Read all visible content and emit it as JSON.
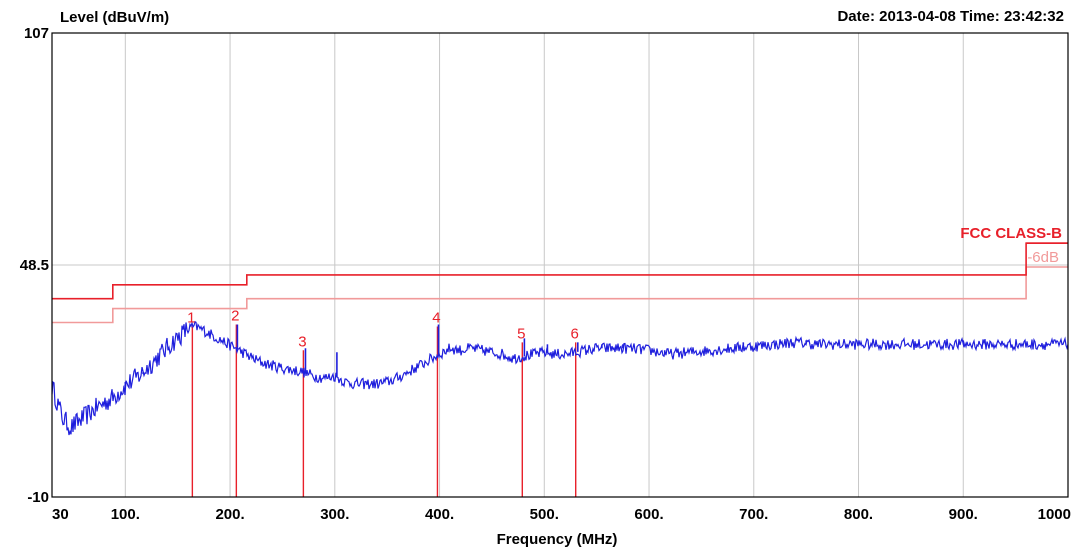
{
  "header": {
    "ylabel": "Level (dBuV/m)",
    "datetime": "Date: 2013-04-08  Time: 23:42:32"
  },
  "chart_data": {
    "type": "line",
    "xlabel": "Frequency (MHz)",
    "ylabel": "Level (dBuV/m)",
    "xlim": [
      30,
      1000
    ],
    "ylim": [
      -10,
      107
    ],
    "x_ticks": [
      "30",
      "100.",
      "200.",
      "300.",
      "400.",
      "500.",
      "600.",
      "700.",
      "800.",
      "900.",
      "1000"
    ],
    "x_tick_values": [
      30,
      100,
      200,
      300,
      400,
      500,
      600,
      700,
      800,
      900,
      1000
    ],
    "y_ticks": [
      "107",
      "48.5",
      "-10"
    ],
    "y_tick_values": [
      107,
      48.5,
      -10
    ],
    "grid": true,
    "colors": {
      "trace": "#1f1fdd",
      "limit": "#e8202a",
      "margin": "#f19a9a",
      "grid": "#c8c8c8"
    },
    "limit_line": {
      "name": "FCC CLASS-B",
      "points": [
        [
          30,
          40
        ],
        [
          88,
          40
        ],
        [
          88,
          43.5
        ],
        [
          216,
          43.5
        ],
        [
          216,
          46
        ],
        [
          960,
          46
        ],
        [
          960,
          54
        ],
        [
          1000,
          54
        ]
      ]
    },
    "margin_line": {
      "name": "-6dB",
      "points": [
        [
          30,
          34
        ],
        [
          88,
          34
        ],
        [
          88,
          37.5
        ],
        [
          216,
          37.5
        ],
        [
          216,
          40
        ],
        [
          960,
          40
        ],
        [
          960,
          48
        ],
        [
          1000,
          48
        ]
      ]
    },
    "series": [
      {
        "points": [
          [
            30,
            18
          ],
          [
            35,
            14
          ],
          [
            40,
            10
          ],
          [
            48,
            7.5
          ],
          [
            55,
            9
          ],
          [
            65,
            11
          ],
          [
            75,
            13
          ],
          [
            88,
            15
          ],
          [
            100,
            18
          ],
          [
            115,
            21
          ],
          [
            130,
            25
          ],
          [
            145,
            29
          ],
          [
            160,
            32.5
          ],
          [
            167,
            33
          ],
          [
            175,
            32
          ],
          [
            185,
            30.5
          ],
          [
            195,
            29
          ],
          [
            205,
            27.5
          ],
          [
            215,
            26
          ],
          [
            225,
            24.5
          ],
          [
            235,
            23.5
          ],
          [
            250,
            22.5
          ],
          [
            260,
            22
          ],
          [
            270,
            21.5
          ],
          [
            280,
            20.5
          ],
          [
            290,
            20
          ],
          [
            300,
            20.5
          ],
          [
            310,
            19
          ],
          [
            320,
            18.5
          ],
          [
            330,
            18.5
          ],
          [
            340,
            18.5
          ],
          [
            350,
            19
          ],
          [
            360,
            20
          ],
          [
            370,
            21.5
          ],
          [
            380,
            23
          ],
          [
            390,
            24.5
          ],
          [
            400,
            26
          ],
          [
            410,
            27.5
          ],
          [
            420,
            27
          ],
          [
            430,
            27.5
          ],
          [
            440,
            27
          ],
          [
            450,
            26.5
          ],
          [
            460,
            26
          ],
          [
            470,
            25
          ],
          [
            480,
            25.5
          ],
          [
            490,
            26
          ],
          [
            500,
            26.5
          ],
          [
            510,
            26
          ],
          [
            520,
            26
          ],
          [
            530,
            26.5
          ],
          [
            550,
            27.5
          ],
          [
            580,
            27.5
          ],
          [
            600,
            27
          ],
          [
            620,
            26
          ],
          [
            640,
            26.5
          ],
          [
            660,
            27
          ],
          [
            680,
            27.5
          ],
          [
            700,
            28
          ],
          [
            720,
            28.5
          ],
          [
            740,
            29
          ],
          [
            760,
            28.5
          ],
          [
            780,
            28.5
          ],
          [
            800,
            28.5
          ],
          [
            850,
            28.5
          ],
          [
            900,
            28.5
          ],
          [
            950,
            28.5
          ],
          [
            1000,
            28.5
          ]
        ],
        "spurs": [
          [
            88,
            15
          ],
          [
            100,
            19
          ],
          [
            117,
            21
          ],
          [
            207,
            33.5
          ],
          [
            272,
            27.5
          ],
          [
            302,
            26.5
          ],
          [
            399,
            33.5
          ],
          [
            481,
            30
          ],
          [
            503,
            28.5
          ],
          [
            532,
            29
          ],
          [
            555,
            28.5
          ],
          [
            575,
            28.5
          ],
          [
            615,
            27
          ],
          [
            690,
            29
          ],
          [
            750,
            29.5
          ],
          [
            900,
            29.5
          ]
        ]
      }
    ],
    "markers": [
      {
        "label": "1",
        "x": 164,
        "y": 33
      },
      {
        "label": "2",
        "x": 206,
        "y": 33.5
      },
      {
        "label": "3",
        "x": 270,
        "y": 27
      },
      {
        "label": "4",
        "x": 398,
        "y": 33
      },
      {
        "label": "5",
        "x": 479,
        "y": 29
      },
      {
        "label": "6",
        "x": 530,
        "y": 29
      }
    ]
  }
}
